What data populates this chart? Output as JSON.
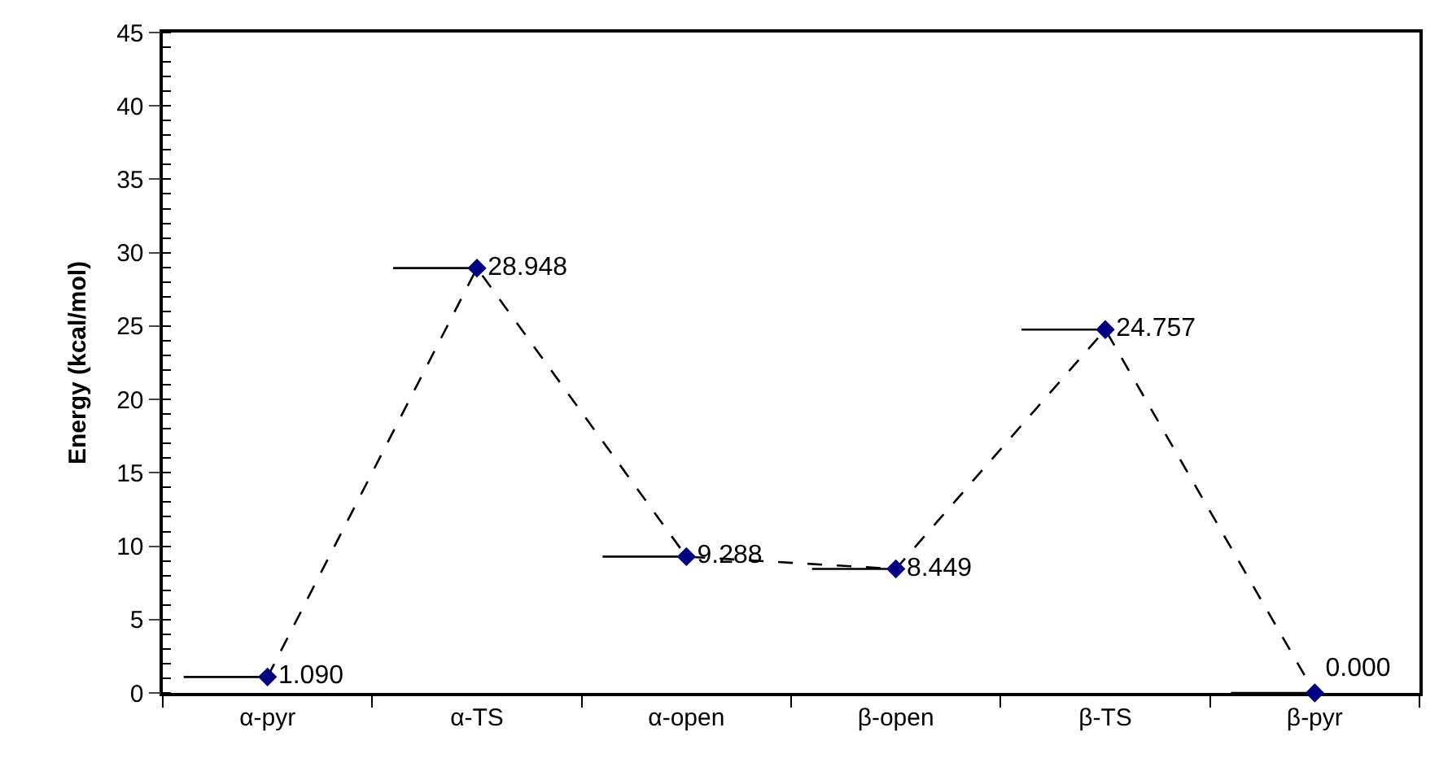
{
  "chart_data": {
    "type": "line",
    "ylabel": "Energy (kcal/mol)",
    "categories": [
      "α-pyr",
      "α-TS",
      "α-open",
      "β-open",
      "β-TS",
      "β-pyr"
    ],
    "series": [
      {
        "color": "#000000",
        "colors": [
          "#000080",
          "#000080",
          "#000080",
          "#000080",
          "#000080",
          "#000080"
        ],
        "values": [
          1.09,
          28.948,
          9.288,
          8.449,
          24.757,
          0.0
        ],
        "value_labels": [
          "1.090",
          "28.948",
          "9.288",
          "8.449",
          "24.757",
          "0.000"
        ]
      }
    ],
    "ylim": [
      0,
      45
    ],
    "yticks": [
      0,
      5,
      10,
      15,
      20,
      25,
      30,
      35,
      40,
      45
    ],
    "marker": "diamond",
    "line_style": "dashed"
  }
}
